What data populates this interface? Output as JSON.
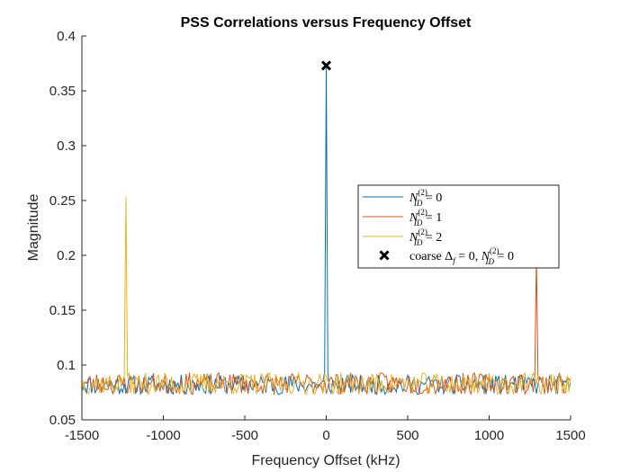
{
  "chart_data": {
    "type": "line",
    "title": "PSS Correlations versus Frequency Offset",
    "xlabel": "Frequency Offset (kHz)",
    "ylabel": "Magnitude",
    "xlim": [
      -1500,
      1500
    ],
    "ylim": [
      0.05,
      0.4
    ],
    "xticks": [
      -1500,
      -1000,
      -500,
      0,
      500,
      1000,
      1500
    ],
    "yticks": [
      0.05,
      0.1,
      0.15,
      0.2,
      0.25,
      0.3,
      0.35,
      0.4
    ],
    "xtick_labels": [
      "-1500",
      "-1000",
      "-500",
      "0",
      "500",
      "1000",
      "1500"
    ],
    "ytick_labels": [
      "0.05",
      "0.1",
      "0.15",
      "0.2",
      "0.25",
      "0.3",
      "0.35",
      "0.4"
    ],
    "grid": false,
    "legend_position": "right",
    "series": [
      {
        "legend_main": "N",
        "legend_sub": "ID",
        "legend_sup": "(2)",
        "legend_rhs": " = 0",
        "color": "#0072BD",
        "noise_base": 0.082,
        "noise_amp": 0.009,
        "seed": 11,
        "peaks": [
          {
            "x": 0,
            "y": 0.373
          }
        ]
      },
      {
        "legend_main": "N",
        "legend_sub": "ID",
        "legend_sup": "(2)",
        "legend_rhs": " = 1",
        "color": "#D95319",
        "noise_base": 0.083,
        "noise_amp": 0.01,
        "seed": 23,
        "peaks": [
          {
            "x": 1290,
            "y": 0.2
          }
        ]
      },
      {
        "legend_main": "N",
        "legend_sub": "ID",
        "legend_sup": "(2)",
        "legend_rhs": " = 2",
        "color": "#EDB120",
        "noise_base": 0.083,
        "noise_amp": 0.01,
        "seed": 37,
        "peaks": [
          {
            "x": -1230,
            "y": 0.253
          }
        ]
      }
    ],
    "marker": {
      "x": 0,
      "y": 0.373,
      "legend_prefix": "coarse ",
      "legend_delta": "Δ",
      "legend_delta_sub": "f",
      "legend_mid": " = 0, ",
      "legend_main": "N",
      "legend_sub": "ID",
      "legend_sup": "(2)",
      "legend_rhs": " = 0",
      "color": "#000000"
    }
  }
}
